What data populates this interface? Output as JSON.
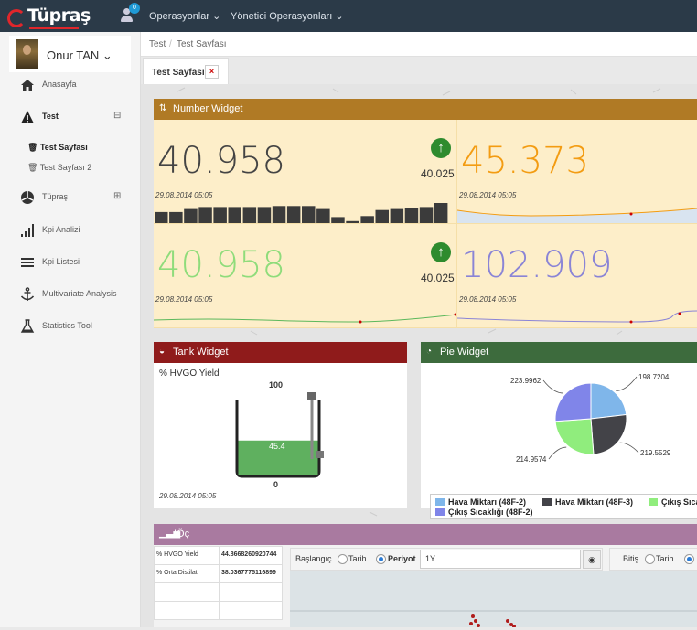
{
  "topbar": {
    "brand": "Tüpraş",
    "notification_count": "0",
    "menu": [
      {
        "label": "Operasyonlar ⌄"
      },
      {
        "label": "Yönetici Operasyonları ⌄"
      }
    ]
  },
  "sidebar": {
    "user_name": "Onur TAN ⌄",
    "items": [
      {
        "label": "Anasayfa",
        "icon": "home-icon"
      },
      {
        "label": "Test",
        "icon": "warning-icon",
        "toggle": "⊟"
      },
      {
        "label": "Tüpraş",
        "icon": "tupras-icon",
        "toggle": "⊞"
      },
      {
        "label": "Kpi Analizi",
        "icon": "bar-signal-icon"
      },
      {
        "label": "Kpi Listesi",
        "icon": "list-icon"
      },
      {
        "label": "Multivariate Analysis",
        "icon": "anchor-icon"
      },
      {
        "label": "Statistics Tool",
        "icon": "flask-icon"
      }
    ],
    "sub_items": [
      {
        "label": "Test Sayfası"
      },
      {
        "label": "Test Sayfası 2"
      }
    ]
  },
  "breadcrumb": {
    "root": "Test",
    "sep": "/",
    "current": "Test Sayfası"
  },
  "tab": {
    "label": "Test Sayfası",
    "close": "×"
  },
  "number_widget": {
    "title": "Number Widget",
    "color": "#b07a25",
    "cells": [
      {
        "value": "40.958",
        "prev": "40.025",
        "date": "29.08.2014 05:05",
        "color": "#444444",
        "trend": "up"
      },
      {
        "value": "45.373",
        "date": "29.08.2014 05:05",
        "color": "#f39c12"
      },
      {
        "value": "40.958",
        "prev": "40.025",
        "date": "29.08.2014 05:05",
        "color": "#8fdc7b",
        "trend": "up"
      },
      {
        "value": "102.909",
        "date": "29.08.2014 05:05",
        "color": "#8a84d6"
      }
    ],
    "bar_levels": [
      0.55,
      0.55,
      0.7,
      0.8,
      0.8,
      0.8,
      0.8,
      0.8,
      0.85,
      0.85,
      0.85,
      0.7,
      0.3,
      0.1,
      0.35,
      0.65,
      0.7,
      0.75,
      0.8,
      1.0
    ]
  },
  "tank_widget": {
    "title": "Tank Widget",
    "color": "#8f1b1b",
    "label": "% HVGO Yield",
    "max": "100",
    "min": "0",
    "value": "45.4",
    "level": 0.454,
    "date": "29.08.2014 05:05"
  },
  "pie_widget": {
    "title": "Pie Widget",
    "color": "#3d6b3d",
    "slices": [
      {
        "name": "Hava Miktarı (48F-2)",
        "value": 198.7204,
        "label": "198.7204",
        "color": "#7fb6ea"
      },
      {
        "name": "Hava Miktarı (48F-3)",
        "value": 219.5529,
        "label": "219.5529",
        "color": "#434348"
      },
      {
        "name": "Çıkış Sıca",
        "value": 214.9574,
        "label": "214.9574",
        "color": "#90ed7d"
      },
      {
        "name": "Çıkış Sıcaklığı (48F-2)",
        "value": 223.9962,
        "label": "223.9962",
        "color": "#8085e9"
      }
    ]
  },
  "ioc_widget": {
    "title": "IÖç",
    "color": "#a97aa0",
    "rows": [
      {
        "name": "% HVGO Yield",
        "value": "44.8668260920744"
      },
      {
        "name": "% Orta Distilat",
        "value": "38.0367775116899"
      }
    ],
    "start_label": "Başlangıç",
    "end_label": "Bitiş",
    "opt_date": "Tarih",
    "opt_period": "Periyot",
    "period_value": "1Y"
  }
}
